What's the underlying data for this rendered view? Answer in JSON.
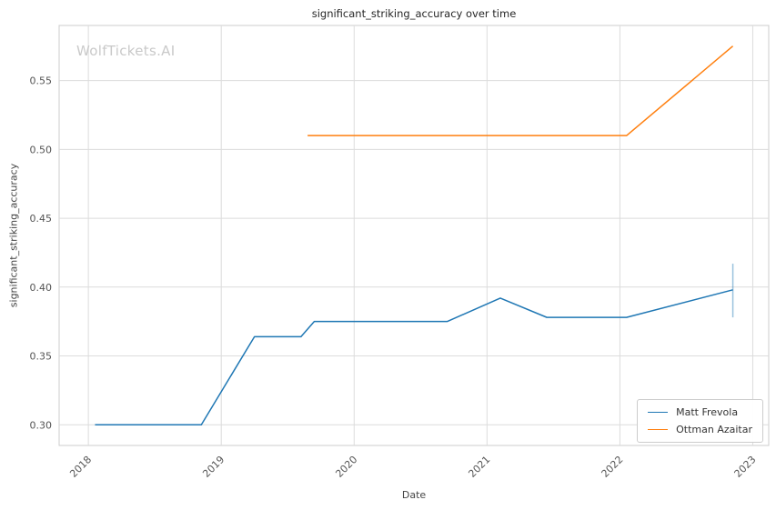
{
  "watermark": "WolfTickets.AI",
  "colors": {
    "grid": "#dcdcdc",
    "spine": "#cccccc",
    "tick_label": "#555555",
    "title": "#262626",
    "watermark": "#c9c9c9",
    "background": "#ffffff"
  },
  "chart_data": {
    "type": "line",
    "title": "significant_striking_accuracy over time",
    "xlabel": "Date",
    "ylabel": "significant_striking_accuracy",
    "xlim": [
      2017.78,
      2023.12
    ],
    "ylim": [
      0.285,
      0.59
    ],
    "x_ticks": [
      2018,
      2019,
      2020,
      2021,
      2022,
      2023
    ],
    "y_ticks": [
      0.3,
      0.35,
      0.4,
      0.45,
      0.5,
      0.55
    ],
    "grid": true,
    "legend_position": "lower right",
    "series": [
      {
        "name": "Matt Frevola",
        "color": "#1f77b4",
        "points": [
          [
            2018.05,
            0.3
          ],
          [
            2018.85,
            0.3
          ],
          [
            2019.25,
            0.364
          ],
          [
            2019.6,
            0.364
          ],
          [
            2019.7,
            0.375
          ],
          [
            2020.7,
            0.375
          ],
          [
            2021.1,
            0.392
          ],
          [
            2021.45,
            0.378
          ],
          [
            2022.05,
            0.378
          ],
          [
            2022.85,
            0.398
          ]
        ],
        "error_bar": {
          "x": 2022.85,
          "y_low": 0.378,
          "y_high": 0.417
        }
      },
      {
        "name": "Ottman Azaitar",
        "color": "#ff7f0e",
        "points": [
          [
            2019.65,
            0.51
          ],
          [
            2022.05,
            0.51
          ],
          [
            2022.85,
            0.575
          ]
        ],
        "error_bar": null
      }
    ]
  }
}
